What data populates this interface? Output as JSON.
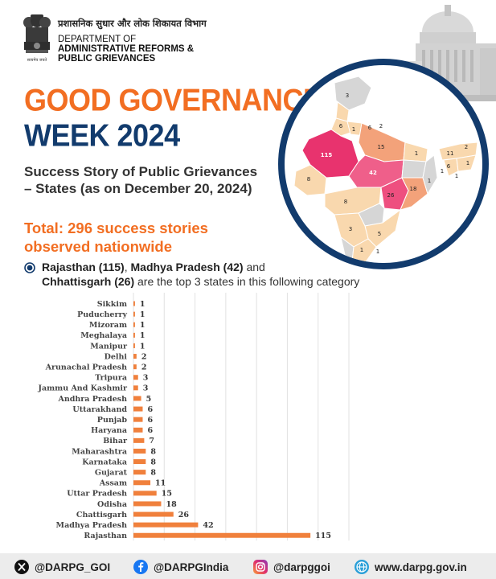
{
  "header": {
    "dept_hindi": "प्रशासनिक सुधार और लोक शिकायत विभाग",
    "dept_line1": "DEPARTMENT OF",
    "dept_line2": "ADMINISTRATIVE REFORMS &",
    "dept_line3": "PUBLIC GRIEVANCES",
    "emblem_motto": "सत्यमेव जयते"
  },
  "title": {
    "line1": "GOOD GOVERNANCE",
    "line2": "WEEK 2024"
  },
  "subtitle": "Success Story of Public Grievances – States (as on December 20, 2024)",
  "total": "Total: 296 success stories observed nationwide",
  "note": {
    "s1": "Rajasthan (115)",
    "t1": ", ",
    "s2": "Madhya Pradesh (42)",
    "t2": " and ",
    "s3": "Chhattisgarh (26)",
    "t3": " are the top 3 states in this following category"
  },
  "map": {
    "labels": [
      "3",
      "6",
      "1",
      "6",
      "2",
      "115",
      "15",
      "42",
      "26",
      "18",
      "8",
      "8",
      "5",
      "3",
      "1",
      "1",
      "1",
      "1",
      "2",
      "11",
      "1",
      "6",
      "1",
      "1"
    ]
  },
  "colors": {
    "orange": "#f26e22",
    "navy": "#123b6d",
    "bar": "#f0803c",
    "map_high": "#e8336e",
    "map_mid": "#f3a27a",
    "map_low": "#f9d8ae",
    "map_none": "#d6d6d6"
  },
  "chart_data": {
    "type": "bar",
    "orientation": "horizontal",
    "categories": [
      "Sikkim",
      "Puducherry",
      "Mizoram",
      "Meghalaya",
      "Manipur",
      "Delhi",
      "Arunachal Pradesh",
      "Tripura",
      "Jammu And Kashmir",
      "Andhra Pradesh",
      "Uttarakhand",
      "Punjab",
      "Haryana",
      "Bihar",
      "Maharashtra",
      "Karnataka",
      "Gujarat",
      "Assam",
      "Uttar Pradesh",
      "Odisha",
      "Chattisgarh",
      "Madhya Pradesh",
      "Rajasthan"
    ],
    "values": [
      1,
      1,
      1,
      1,
      1,
      2,
      2,
      3,
      3,
      5,
      6,
      6,
      6,
      7,
      8,
      8,
      8,
      11,
      15,
      18,
      26,
      42,
      115
    ],
    "xlim": [
      0,
      140
    ],
    "grid": true,
    "title": "",
    "xlabel": "",
    "ylabel": ""
  },
  "footer": {
    "twitter": "@DARPG_GOI",
    "facebook": "@DARPGIndia",
    "instagram": "@darpggoi",
    "website": "www.darpg.gov.in",
    "twitter_icon": "x-icon",
    "facebook_icon": "facebook-icon",
    "instagram_icon": "instagram-icon",
    "website_icon": "globe-icon"
  }
}
